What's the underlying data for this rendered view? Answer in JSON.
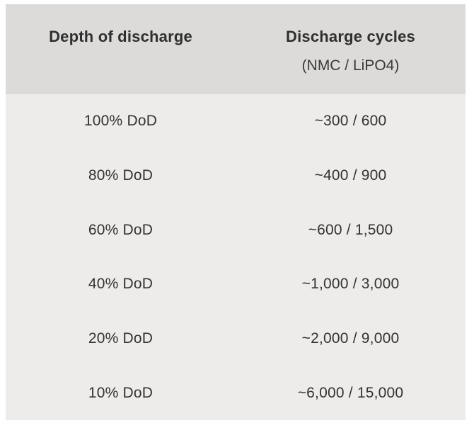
{
  "table": {
    "header": {
      "col1": "Depth of discharge",
      "col2_line1": "Discharge cycles",
      "col2_line2": "(NMC / LiPO4)"
    },
    "rows": [
      {
        "dod": "100% DoD",
        "cycles": "~300 / 600"
      },
      {
        "dod": "80% DoD",
        "cycles": "~400 / 900"
      },
      {
        "dod": "60% DoD",
        "cycles": "~600 / 1,500"
      },
      {
        "dod": "40% DoD",
        "cycles": "~1,000 / 3,000"
      },
      {
        "dod": "20% DoD",
        "cycles": "~2,000 / 9,000"
      },
      {
        "dod": "10% DoD",
        "cycles": "~6,000 / 15,000"
      }
    ]
  },
  "colors": {
    "page_bg": "#ffffff",
    "header_bg": "#dcdbd9",
    "body_bg": "#edecea",
    "text": "#333333"
  },
  "chart_data": {
    "type": "table",
    "title": "Discharge cycles by depth of discharge (NMC / LiPO4)",
    "columns": [
      "Depth of discharge",
      "Discharge cycles (NMC / LiPO4)"
    ],
    "categories": [
      "100% DoD",
      "80% DoD",
      "60% DoD",
      "40% DoD",
      "20% DoD",
      "10% DoD"
    ],
    "series": [
      {
        "name": "NMC",
        "values": [
          300,
          400,
          600,
          1000,
          2000,
          6000
        ]
      },
      {
        "name": "LiPO4",
        "values": [
          600,
          900,
          1500,
          3000,
          9000,
          15000
        ]
      }
    ],
    "value_prefix": "~",
    "legend_position": "none",
    "grid": false
  }
}
